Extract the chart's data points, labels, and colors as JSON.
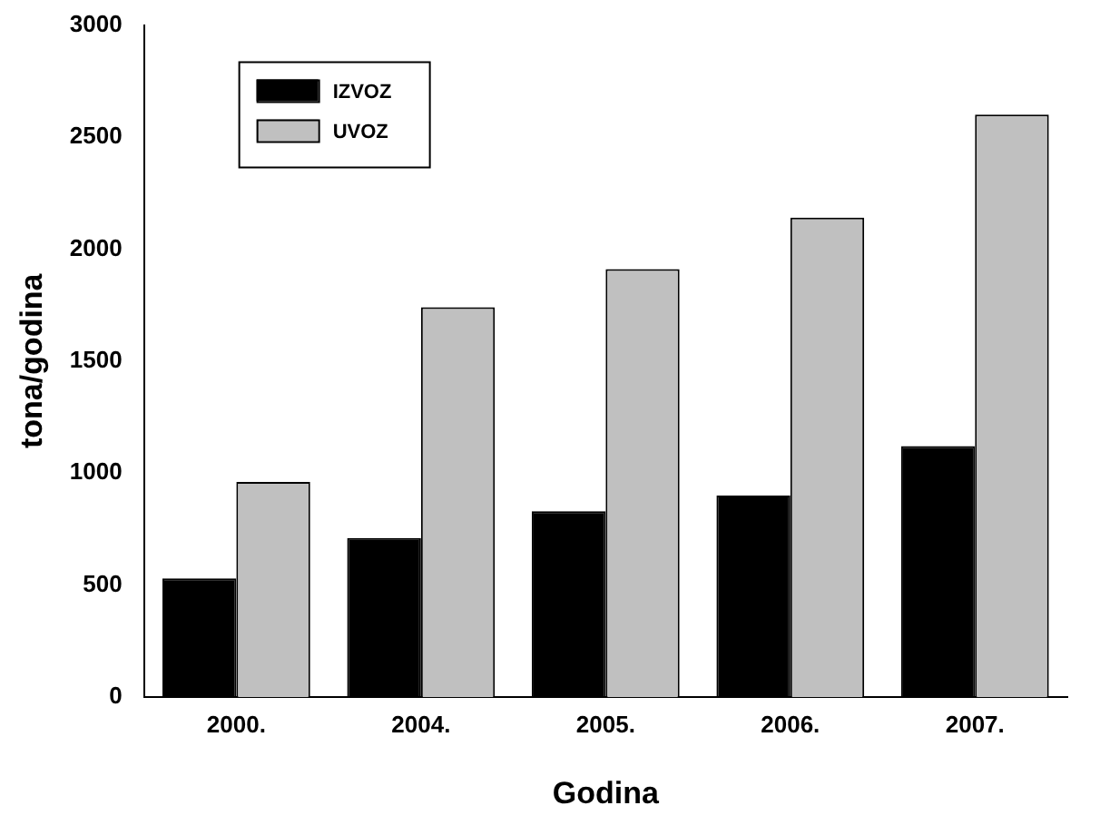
{
  "chart_data": {
    "type": "bar",
    "xlabel": "Godina",
    "ylabel": "tona/godina",
    "categories": [
      "2000.",
      "2004.",
      "2005.",
      "2006.",
      "2007."
    ],
    "series": [
      {
        "name": "IZVOZ",
        "color": "#000000",
        "values": [
          530,
          710,
          830,
          900,
          1120
        ]
      },
      {
        "name": "UVOZ",
        "color": "#c0c0c0",
        "values": [
          960,
          1740,
          1910,
          2140,
          2600
        ]
      }
    ],
    "ylim": [
      0,
      3000
    ],
    "yticks": [
      0,
      500,
      1000,
      1500,
      2000,
      2500,
      3000
    ],
    "grid": false,
    "legend": "top left"
  }
}
